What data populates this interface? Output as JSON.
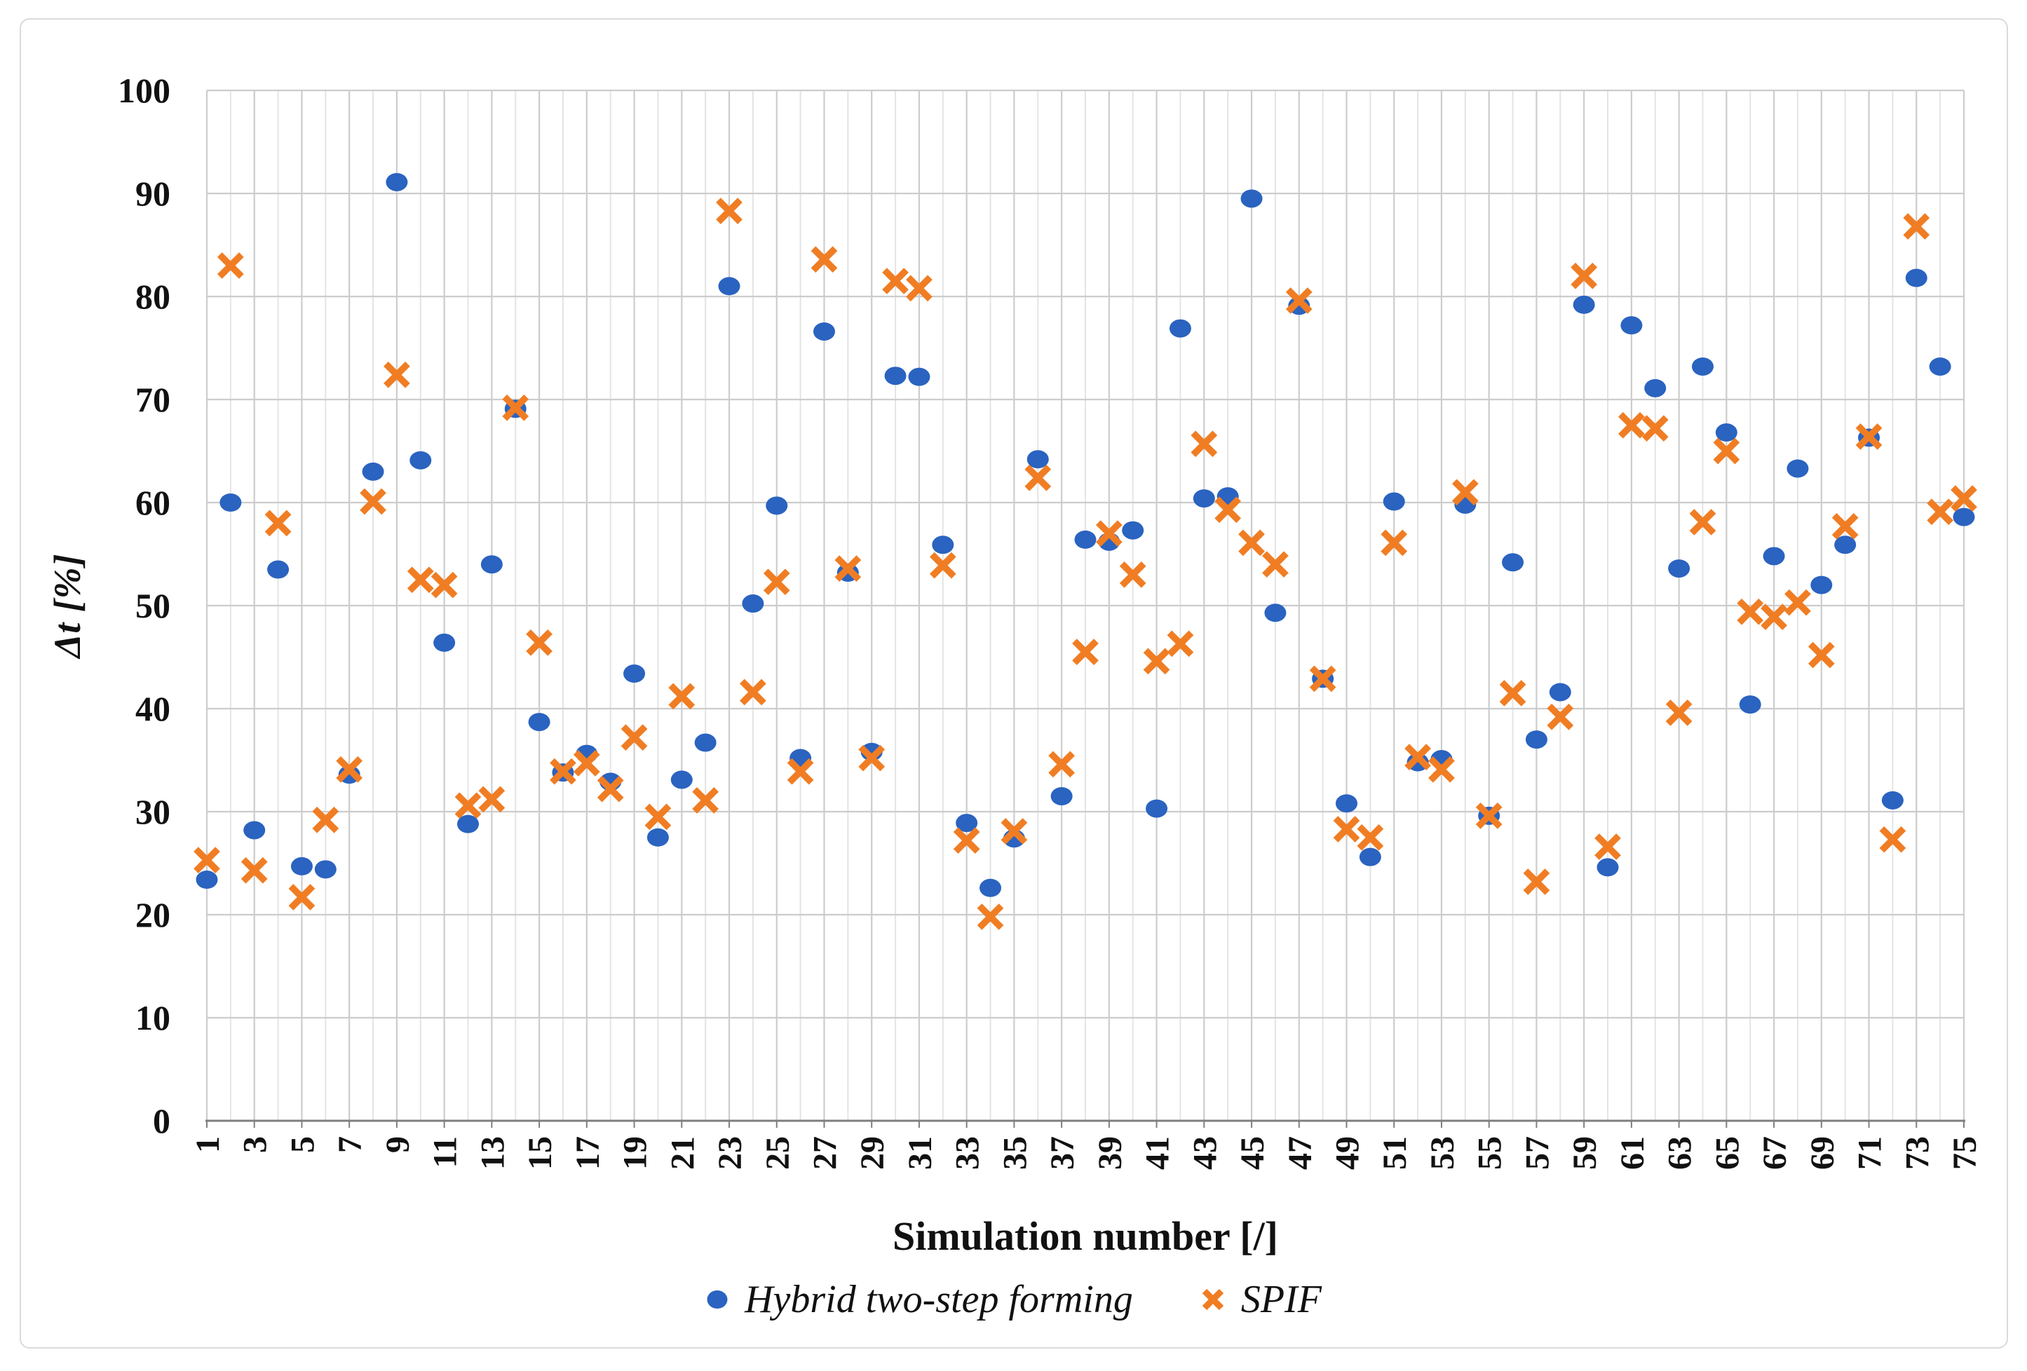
{
  "figure": {
    "background": "#ffffff",
    "border_color": "#dadada"
  },
  "chart_data": {
    "type": "scatter",
    "title": "",
    "xlabel": "Simulation number [/]",
    "ylabel": "Δt [%]",
    "xlim": [
      1,
      75
    ],
    "ylim": [
      0,
      100
    ],
    "y_ticks": [
      0,
      10,
      20,
      30,
      40,
      50,
      60,
      70,
      80,
      90,
      100
    ],
    "x_tick_labels": [
      1,
      3,
      5,
      7,
      9,
      11,
      13,
      15,
      17,
      19,
      21,
      23,
      25,
      27,
      29,
      31,
      33,
      35,
      37,
      39,
      41,
      43,
      45,
      47,
      49,
      51,
      53,
      55,
      57,
      59,
      61,
      63,
      65,
      67,
      69,
      71,
      73,
      75
    ],
    "grid": "both",
    "legend_position": "bottom",
    "axis_color": "#7f7f7f",
    "grid_color_major": "#cccccc",
    "grid_color_minor": "#e4e4e4",
    "x": [
      1,
      2,
      3,
      4,
      5,
      6,
      7,
      8,
      9,
      10,
      11,
      12,
      13,
      14,
      15,
      16,
      17,
      18,
      19,
      20,
      21,
      22,
      23,
      24,
      25,
      26,
      27,
      28,
      29,
      30,
      31,
      32,
      33,
      34,
      35,
      36,
      37,
      38,
      39,
      40,
      41,
      42,
      43,
      44,
      45,
      46,
      47,
      48,
      49,
      50,
      51,
      52,
      53,
      54,
      55,
      56,
      57,
      58,
      59,
      60,
      61,
      62,
      63,
      64,
      65,
      66,
      67,
      68,
      69,
      70,
      71,
      72,
      73,
      74,
      75
    ],
    "series": [
      {
        "name": "Hybrid two-step forming",
        "marker": "circle",
        "color": "#2a63c0",
        "values": [
          23.4,
          60.0,
          28.2,
          53.5,
          24.7,
          24.4,
          33.6,
          63.0,
          91.1,
          64.1,
          46.4,
          28.8,
          54.0,
          69.1,
          38.7,
          33.8,
          35.6,
          32.9,
          43.4,
          27.5,
          33.1,
          36.7,
          81.0,
          50.2,
          59.7,
          35.2,
          76.6,
          53.2,
          35.8,
          72.3,
          72.2,
          55.9,
          28.9,
          22.6,
          27.4,
          64.2,
          31.5,
          56.4,
          56.2,
          57.3,
          30.3,
          76.9,
          60.4,
          60.6,
          89.5,
          49.3,
          79.1,
          42.9,
          30.8,
          25.6,
          60.1,
          34.8,
          35.1,
          59.8,
          29.6,
          54.2,
          37.0,
          41.6,
          79.2,
          24.6,
          77.2,
          71.1,
          53.6,
          73.2,
          66.8,
          40.4,
          54.8,
          63.3,
          52.0,
          55.9,
          66.3,
          31.1,
          81.8,
          73.2,
          58.6
        ]
      },
      {
        "name": "SPIF",
        "marker": "x",
        "color": "#f07d23",
        "values": [
          25.3,
          83.0,
          24.3,
          58.0,
          21.7,
          29.2,
          34.1,
          60.1,
          72.4,
          52.5,
          52.0,
          30.6,
          31.2,
          69.2,
          46.4,
          33.9,
          34.7,
          32.2,
          37.2,
          29.5,
          41.2,
          31.1,
          88.3,
          41.6,
          52.3,
          33.9,
          83.6,
          53.6,
          35.2,
          81.5,
          80.8,
          53.9,
          27.2,
          19.8,
          28.1,
          62.4,
          34.6,
          45.5,
          57.0,
          53.0,
          44.6,
          46.3,
          65.7,
          59.3,
          56.1,
          54.0,
          79.6,
          42.9,
          28.3,
          27.5,
          56.1,
          35.3,
          34.1,
          61.0,
          29.6,
          41.5,
          23.2,
          39.2,
          82.0,
          26.6,
          67.5,
          67.2,
          39.6,
          58.1,
          65.0,
          49.4,
          48.9,
          50.3,
          45.2,
          57.7,
          66.4,
          27.3,
          86.8,
          59.1,
          60.4
        ]
      }
    ]
  }
}
